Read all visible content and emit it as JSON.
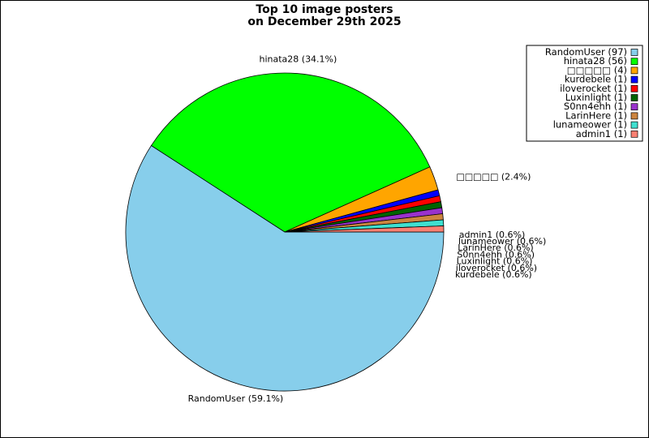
{
  "chart_data": {
    "type": "pie",
    "title": "Top 10 image posters",
    "subtitle": "on December 29th 2025",
    "legend_position": "top-right",
    "slices": [
      {
        "label": "RandomUser",
        "value": 97,
        "percent": "59.1%",
        "color": "#87ceeb"
      },
      {
        "label": "hinata28",
        "value": 56,
        "percent": "34.1%",
        "color": "#00ff00"
      },
      {
        "label": "□□□□□",
        "value": 4,
        "percent": "2.4%",
        "color": "#ffa500"
      },
      {
        "label": "kurdebele",
        "value": 1,
        "percent": "0.6%",
        "color": "#0000ff"
      },
      {
        "label": "iloverocket",
        "value": 1,
        "percent": "0.6%",
        "color": "#ff0000"
      },
      {
        "label": "Luxinlight",
        "value": 1,
        "percent": "0.6%",
        "color": "#006400"
      },
      {
        "label": "S0nn4ehh",
        "value": 1,
        "percent": "0.6%",
        "color": "#9932cc"
      },
      {
        "label": "LarinHere",
        "value": 1,
        "percent": "0.6%",
        "color": "#cd853f"
      },
      {
        "label": "lunameower",
        "value": 1,
        "percent": "0.6%",
        "color": "#40e0d0"
      },
      {
        "label": "admin1",
        "value": 1,
        "percent": "0.6%",
        "color": "#fa8072"
      }
    ]
  }
}
